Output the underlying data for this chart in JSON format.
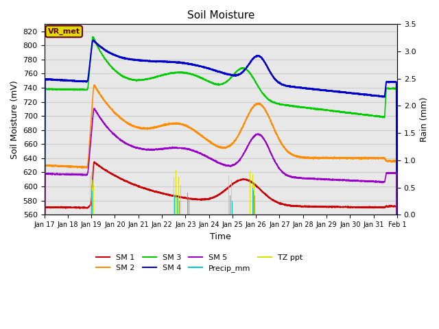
{
  "title": "Soil Moisture",
  "xlabel": "Time",
  "ylabel_left": "Soil Moisture (mV)",
  "ylabel_right": "Rain (mm)",
  "ylim_left": [
    560,
    830
  ],
  "ylim_right": [
    0.0,
    3.5
  ],
  "yticks_left": [
    560,
    580,
    600,
    620,
    640,
    660,
    680,
    700,
    720,
    740,
    760,
    780,
    800,
    820
  ],
  "yticks_right": [
    0.0,
    0.5,
    1.0,
    1.5,
    2.0,
    2.5,
    3.0,
    3.5
  ],
  "xtick_labels": [
    "Jan 17",
    "Jan 18",
    "Jan 19",
    "Jan 20",
    "Jan 21",
    "Jan 22",
    "Jan 23",
    "Jan 24",
    "Jan 25",
    "Jan 26",
    "Jan 27",
    "Jan 28",
    "Jan 29",
    "Jan 30",
    "Jan 31",
    "Feb 1"
  ],
  "colors": {
    "SM1": "#cc0000",
    "SM2": "#ff8c00",
    "SM3": "#00cc00",
    "SM4": "#0000cc",
    "SM5": "#9900cc",
    "Precip": "#00cccc",
    "TZ": "#dddd00"
  },
  "annotation_text": "VR_met",
  "annotation_color": "#660000",
  "annotation_bg": "#dddd00",
  "grid_color": "#cccccc",
  "bg_color": "#e8e8e8"
}
